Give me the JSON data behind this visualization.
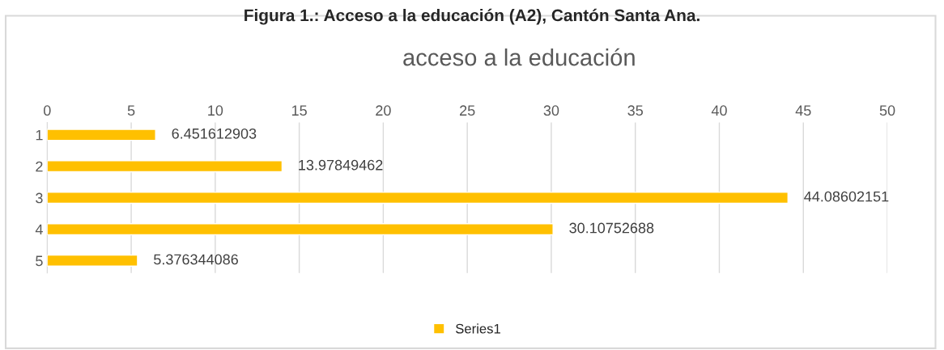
{
  "chart_data": {
    "type": "bar",
    "orientation": "horizontal",
    "title": "Figura 1.: Acceso a la educación (A2), Cantón Santa Ana.",
    "subtitle": "acceso a la educación",
    "categories": [
      "1",
      "2",
      "3",
      "4",
      "5"
    ],
    "series": [
      {
        "name": "Series1",
        "color": "#ffc000",
        "values": [
          6.451612903,
          13.97849462,
          44.08602151,
          30.10752688,
          5.376344086
        ]
      }
    ],
    "data_labels": true,
    "xlim": [
      0,
      50
    ],
    "xticks": [
      0,
      5,
      10,
      15,
      20,
      25,
      30,
      35,
      40,
      45,
      50
    ],
    "grid": "x",
    "legend": "bottom"
  }
}
